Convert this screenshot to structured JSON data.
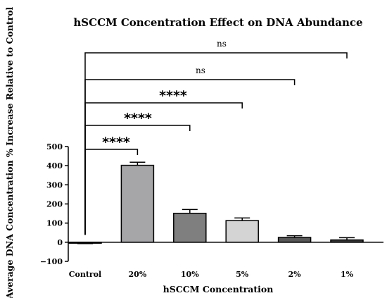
{
  "chart_data": {
    "type": "bar",
    "title": "hSCCM Concentration Effect on DNA Abundance",
    "xlabel": "hSCCM Concentration",
    "ylabel": "Average DNA Concentration % Increase Relative to Control",
    "categories": [
      "Control",
      "20%",
      "10%",
      "5%",
      "2%",
      "1%"
    ],
    "values": [
      -5,
      402,
      151,
      113,
      25,
      12
    ],
    "errors": [
      2,
      16,
      20,
      14,
      9,
      12
    ],
    "bar_colors": [
      "#ffffff",
      "#a6a6a9",
      "#7f7f7f",
      "#d4d4d4",
      "#585858",
      "#3c3c3c"
    ],
    "ylim": [
      -100,
      500
    ],
    "yticks": [
      -100,
      0,
      100,
      200,
      300,
      400,
      500
    ],
    "grid": false,
    "significance": [
      {
        "from": "Control",
        "to": "20%",
        "label": "****"
      },
      {
        "from": "Control",
        "to": "10%",
        "label": "****"
      },
      {
        "from": "Control",
        "to": "5%",
        "label": "****"
      },
      {
        "from": "Control",
        "to": "2%",
        "label": "ns"
      },
      {
        "from": "Control",
        "to": "1%",
        "label": "ns"
      }
    ]
  }
}
